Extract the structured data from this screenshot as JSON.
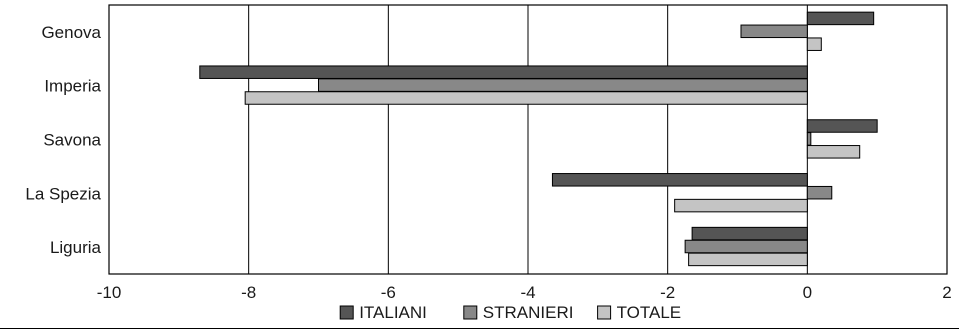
{
  "chart_data": {
    "type": "bar",
    "orientation": "horizontal",
    "categories": [
      "Genova",
      "Imperia",
      "Savona",
      "La Spezia",
      "Liguria"
    ],
    "series": [
      {
        "name": "ITALIANI",
        "color": "#555555",
        "values": [
          0.95,
          -8.7,
          1.0,
          -3.65,
          -1.65
        ]
      },
      {
        "name": "STRANIERI",
        "color": "#888888",
        "values": [
          -0.95,
          -7.0,
          0.05,
          0.35,
          -1.75
        ]
      },
      {
        "name": "TOTALE",
        "color": "#c4c4c4",
        "values": [
          0.2,
          -8.05,
          0.75,
          -1.9,
          -1.7
        ]
      }
    ],
    "xlim": [
      -10,
      2
    ],
    "xticks": [
      "-10",
      "-8",
      "-6",
      "-4",
      "-2",
      "0",
      "2"
    ],
    "grid": "vertical",
    "legend_position": "bottom-center"
  }
}
